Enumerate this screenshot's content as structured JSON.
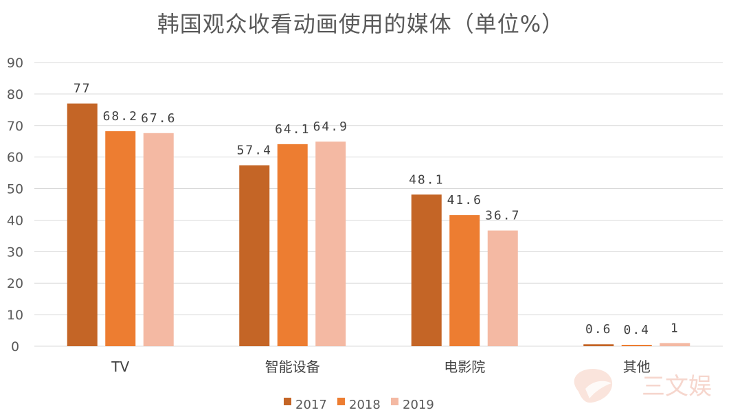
{
  "chart_data": {
    "type": "bar",
    "title": "韩国观众收看动画使用的媒体（单位%）",
    "categories": [
      "TV",
      "智能设备",
      "电影院",
      "其他"
    ],
    "series": [
      {
        "name": "2017",
        "values": [
          77,
          57.4,
          48.1,
          0.6
        ],
        "labels": [
          "77",
          "57.4",
          "48.1",
          "0.6"
        ],
        "color": "#C46526"
      },
      {
        "name": "2018",
        "values": [
          68.2,
          64.1,
          41.6,
          0.4
        ],
        "labels": [
          "68.2",
          "64.1",
          "41.6",
          "0.4"
        ],
        "color": "#ED7D31"
      },
      {
        "name": "2019",
        "values": [
          67.6,
          64.9,
          36.7,
          1
        ],
        "labels": [
          "67.6",
          "64.9",
          "36.7",
          "1"
        ],
        "color": "#F4B9A3"
      }
    ],
    "ylim": [
      0,
      90
    ],
    "yticks": [
      "0",
      "10",
      "20",
      "30",
      "40",
      "50",
      "60",
      "70",
      "80",
      "90"
    ],
    "xlabel": "",
    "ylabel": "",
    "grid": true,
    "legend_position": "bottom"
  },
  "watermark": {
    "text": "三文娱"
  }
}
